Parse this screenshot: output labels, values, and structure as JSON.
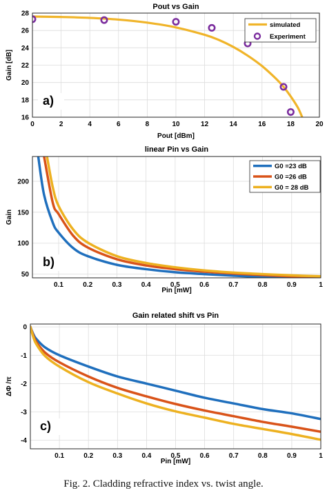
{
  "caption": "Fig. 2. Cladding refractive index vs. twist angle.",
  "chart_data": [
    {
      "type": "line",
      "title": "Pout vs Gain",
      "xlabel": "Pout [dBm]",
      "ylabel": "Gain [dB]",
      "panel_label": "a)",
      "xlim": [
        0,
        20
      ],
      "ylim": [
        16,
        28
      ],
      "xticks": [
        0,
        2,
        4,
        6,
        8,
        10,
        12,
        14,
        16,
        18,
        20
      ],
      "yticks": [
        16,
        18,
        20,
        22,
        24,
        26,
        28
      ],
      "grid": true,
      "legend_position": "top-right",
      "colors": {
        "simulated": "#f0b429",
        "experiment": "#7b2d9e"
      },
      "series": [
        {
          "name": "simulated",
          "kind": "line",
          "x": [
            0,
            2,
            4,
            6,
            8,
            10,
            12,
            13,
            14,
            15,
            16,
            17,
            17.5,
            18,
            18.5,
            18.8
          ],
          "y": [
            27.6,
            27.55,
            27.45,
            27.25,
            26.9,
            26.35,
            25.5,
            24.9,
            24.1,
            23.1,
            21.9,
            20.4,
            19.5,
            18.4,
            17.1,
            16.0
          ]
        },
        {
          "name": "Experiment",
          "kind": "scatter",
          "x": [
            0,
            5,
            10,
            12.5,
            15,
            17.5,
            18
          ],
          "y": [
            27.3,
            27.2,
            27.0,
            26.3,
            24.5,
            19.5,
            16.6
          ]
        }
      ]
    },
    {
      "type": "line",
      "title": "linear Pin vs Gain",
      "xlabel": "Pin [mW]",
      "ylabel": "Gain",
      "panel_label": "b)",
      "xlim": [
        0.01,
        1
      ],
      "ylim": [
        44,
        240
      ],
      "xticks": [
        0.1,
        0.2,
        0.3,
        0.4,
        0.5,
        0.6,
        0.7,
        0.8,
        0.9,
        1
      ],
      "yticks": [
        50,
        100,
        150,
        200
      ],
      "grid": true,
      "legend_position": "top-right",
      "colors": {
        "G0 =23 dB": "#1f6fbd",
        "G0 =26 dB": "#d95319",
        "G0 = 28 dB": "#edb120"
      },
      "series": [
        {
          "name": "G0 =23 dB",
          "x": [
            0.03,
            0.05,
            0.08,
            0.1,
            0.15,
            0.2,
            0.3,
            0.4,
            0.5,
            0.6,
            0.7,
            0.8,
            0.9,
            1.0
          ],
          "y": [
            240,
            178,
            133,
            117,
            92,
            79,
            65,
            58,
            53,
            50,
            47.5,
            45.5,
            44.3,
            43.5
          ]
        },
        {
          "name": "G0 =26 dB",
          "x": [
            0.05,
            0.08,
            0.1,
            0.15,
            0.2,
            0.3,
            0.4,
            0.5,
            0.6,
            0.7,
            0.8,
            0.9,
            1.0
          ],
          "y": [
            240,
            165,
            147,
            112,
            93,
            74,
            64,
            58,
            54,
            51,
            48.5,
            46.5,
            45
          ]
        },
        {
          "name": "G0 = 28 dB",
          "x": [
            0.06,
            0.08,
            0.1,
            0.15,
            0.2,
            0.3,
            0.4,
            0.5,
            0.6,
            0.7,
            0.8,
            0.9,
            1.0
          ],
          "y": [
            240,
            190,
            160,
            122,
            101,
            79,
            68,
            61,
            56,
            52.5,
            50,
            48,
            46.5
          ]
        }
      ]
    },
    {
      "type": "line",
      "title": "Gain related shift vs Pin",
      "xlabel": "Pin [mW]",
      "ylabel": "ΔΦ /π",
      "panel_label": "c)",
      "xlim": [
        0,
        1
      ],
      "ylim": [
        -4.3,
        0.1
      ],
      "xticks": [
        0.1,
        0.2,
        0.3,
        0.4,
        0.5,
        0.6,
        0.7,
        0.8,
        0.9,
        1
      ],
      "yticks": [
        0,
        -1,
        -2,
        -3,
        -4
      ],
      "grid": true,
      "colors": {
        "G0 =23 dB": "#1f6fbd",
        "G0 =26 dB": "#d95319",
        "G0 = 28 dB": "#edb120"
      },
      "series": [
        {
          "name": "G0 =23 dB",
          "x": [
            0,
            0.01,
            0.02,
            0.05,
            0.1,
            0.2,
            0.3,
            0.4,
            0.5,
            0.6,
            0.7,
            0.8,
            0.9,
            1.0
          ],
          "y": [
            0,
            -0.25,
            -0.42,
            -0.72,
            -1.0,
            -1.4,
            -1.75,
            -2.0,
            -2.25,
            -2.5,
            -2.7,
            -2.9,
            -3.05,
            -3.25
          ]
        },
        {
          "name": "G0 =26 dB",
          "x": [
            0,
            0.01,
            0.02,
            0.05,
            0.1,
            0.2,
            0.3,
            0.4,
            0.5,
            0.6,
            0.7,
            0.8,
            0.9,
            1.0
          ],
          "y": [
            0,
            -0.3,
            -0.52,
            -0.9,
            -1.25,
            -1.75,
            -2.15,
            -2.45,
            -2.72,
            -2.95,
            -3.15,
            -3.35,
            -3.52,
            -3.7
          ]
        },
        {
          "name": "G0 = 28 dB",
          "x": [
            0,
            0.01,
            0.02,
            0.05,
            0.1,
            0.2,
            0.3,
            0.4,
            0.5,
            0.6,
            0.7,
            0.8,
            0.9,
            1.0
          ],
          "y": [
            0,
            -0.35,
            -0.6,
            -1.02,
            -1.4,
            -1.95,
            -2.35,
            -2.7,
            -2.98,
            -3.2,
            -3.42,
            -3.6,
            -3.78,
            -3.98
          ]
        }
      ]
    }
  ]
}
